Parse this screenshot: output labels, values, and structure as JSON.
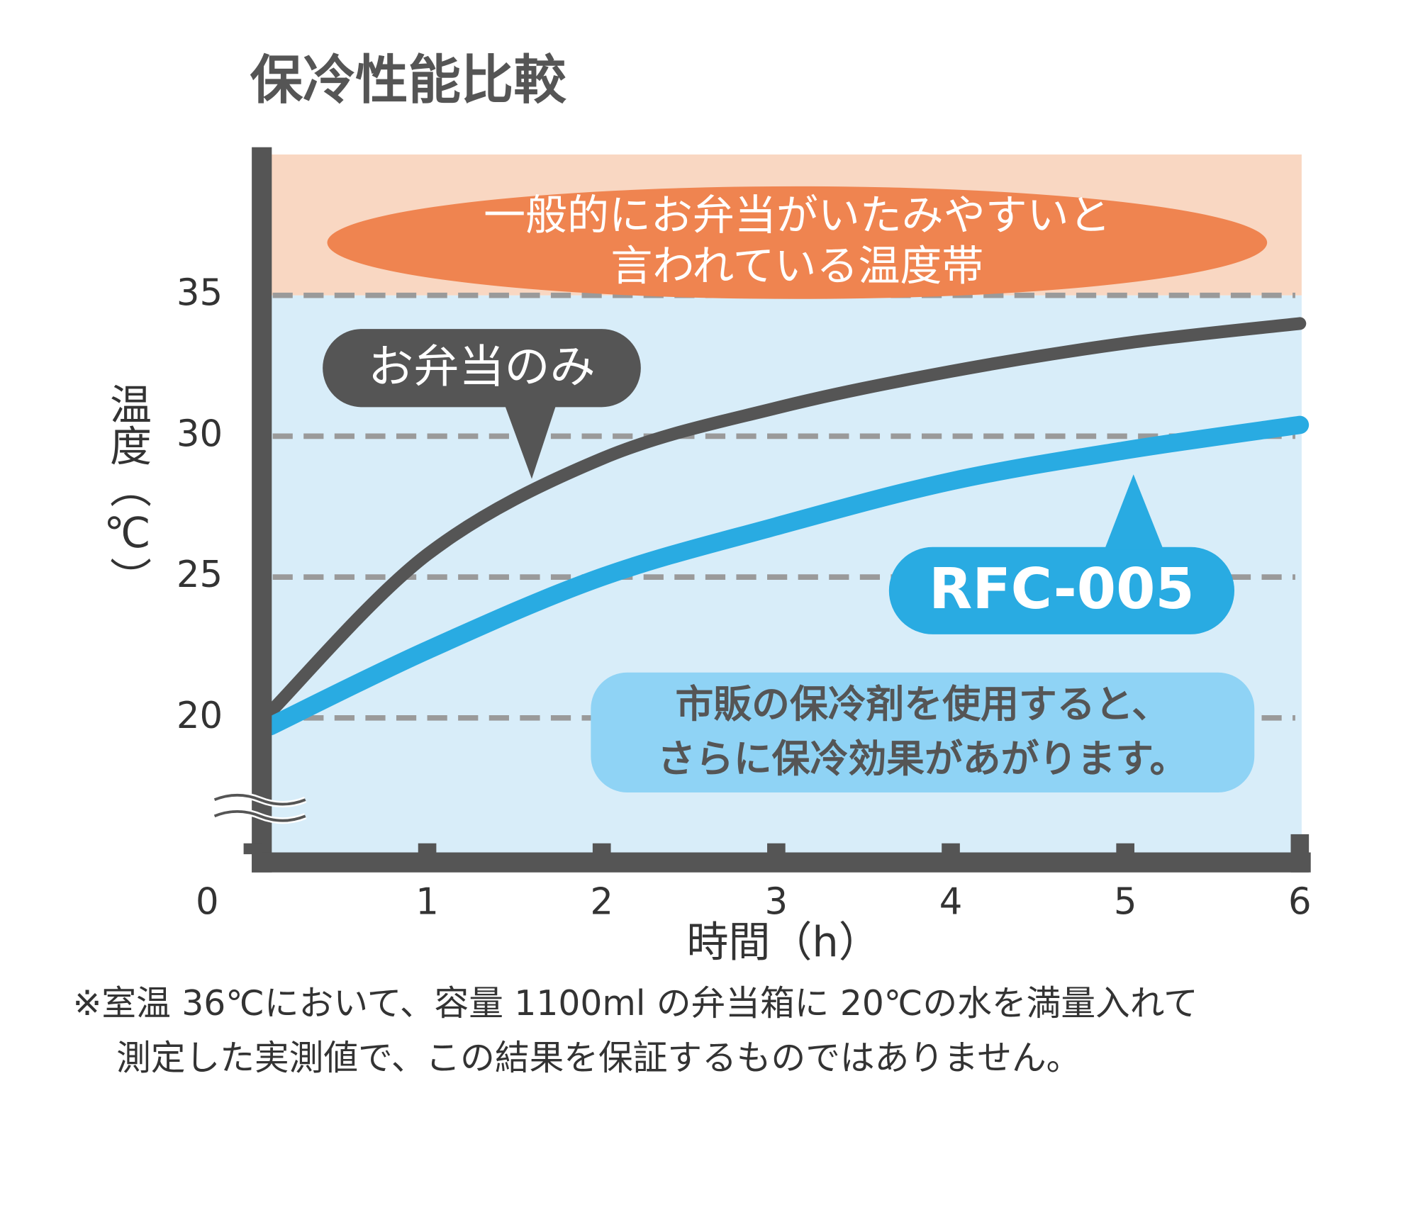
{
  "chart_data": {
    "type": "line",
    "title": "保冷性能比較",
    "y_label": "温度（℃）",
    "x_label": "時間（h）",
    "xlim": [
      0,
      6
    ],
    "xticks": [
      0,
      1,
      2,
      3,
      4,
      5,
      6
    ],
    "ylim": [
      15,
      40
    ],
    "yticks": [
      20,
      25,
      30,
      35
    ],
    "grid": true,
    "bands": [
      {
        "from": 15,
        "to": 35,
        "color": "#d8edf9"
      },
      {
        "from": 35,
        "to": 40,
        "color": "#f9d7c2"
      }
    ],
    "band_annotation": [
      "一般的にお弁当がいたみやすいと",
      "言われている温度帯"
    ],
    "series": [
      {
        "name": "お弁当のみ",
        "color": "#555555",
        "x": [
          0.1,
          1,
          2,
          3,
          4,
          5,
          6
        ],
        "values": [
          20.2,
          25.8,
          29.2,
          31.0,
          32.3,
          33.3,
          34.0
        ]
      },
      {
        "name": "RFC-005",
        "color": "#29abe2",
        "x": [
          0.1,
          1,
          2,
          3,
          4,
          5,
          6
        ],
        "values": [
          19.7,
          22.4,
          25.0,
          26.8,
          28.4,
          29.5,
          30.4
        ]
      }
    ],
    "note": [
      "市販の保冷剤を使用すると、",
      "さらに保冷効果があがります。"
    ],
    "footnote": [
      "※室温 36℃において、容量 1100ml の弁当箱に 20℃の水を満量入れて",
      "測定した実測値で、この結果を保証するものではありません。"
    ]
  }
}
